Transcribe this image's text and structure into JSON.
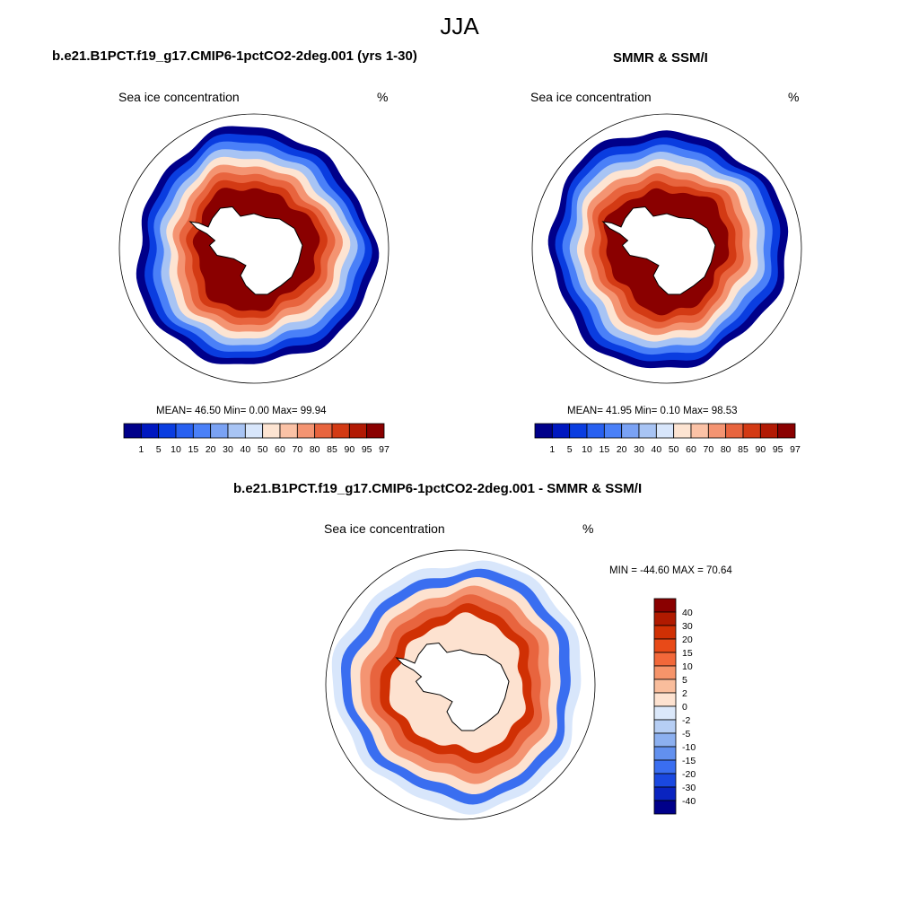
{
  "figure": {
    "season_title": "JJA"
  },
  "panels": [
    {
      "id": "model",
      "title": "b.e21.B1PCT.f19_g17.CMIP6-1pctCO2-2deg.001 (yrs 1-30)",
      "left_label": "Sea ice concentration",
      "right_label": "%",
      "stats_text": "MEAN=  46.50  Min=   0.00  Max=  99.94",
      "stats": {
        "mean": 46.5,
        "min": 0.0,
        "max": 99.94
      }
    },
    {
      "id": "obs",
      "title": "SMMR & SSM/I",
      "left_label": "Sea ice concentration",
      "right_label": "%",
      "stats_text": "MEAN=  41.95  Min=   0.10  Max=  98.53",
      "stats": {
        "mean": 41.95,
        "min": 0.1,
        "max": 98.53
      }
    },
    {
      "id": "diff",
      "title": "b.e21.B1PCT.f19_g17.CMIP6-1pctCO2-2deg.001 - SMMR & SSM/I",
      "left_label": "Sea ice concentration",
      "right_label": "%",
      "stats_text": "MIN = -44.60 MAX =  70.64",
      "stats": {
        "min": -44.6,
        "max": 70.64
      }
    }
  ],
  "colorbars": {
    "concentration": {
      "labels": [
        "1",
        "5",
        "10",
        "15",
        "20",
        "30",
        "40",
        "50",
        "60",
        "70",
        "80",
        "85",
        "90",
        "95",
        "97"
      ],
      "colors": [
        "#00008a",
        "#0018c0",
        "#0a3de0",
        "#2860f0",
        "#4a80f8",
        "#7aa2f4",
        "#a8c4f4",
        "#d8e6fb",
        "#fde4d2",
        "#fbc2a6",
        "#f49472",
        "#e8643e",
        "#d33a14",
        "#b21a04",
        "#8a0000"
      ]
    },
    "difference": {
      "labels": [
        "40",
        "30",
        "20",
        "15",
        "10",
        "5",
        "2",
        "0",
        "-2",
        "-5",
        "-10",
        "-15",
        "-20",
        "-30",
        "-40"
      ],
      "colors": [
        "#8a0000",
        "#b01a00",
        "#d03004",
        "#e84a18",
        "#f2683a",
        "#f6946a",
        "#f9bd9c",
        "#fde2d0",
        "#dbe8fa",
        "#b6cef4",
        "#8cb0f0",
        "#6290ee",
        "#3a6ef0",
        "#1a48e0",
        "#0a24c0",
        "#00008a"
      ]
    }
  }
}
